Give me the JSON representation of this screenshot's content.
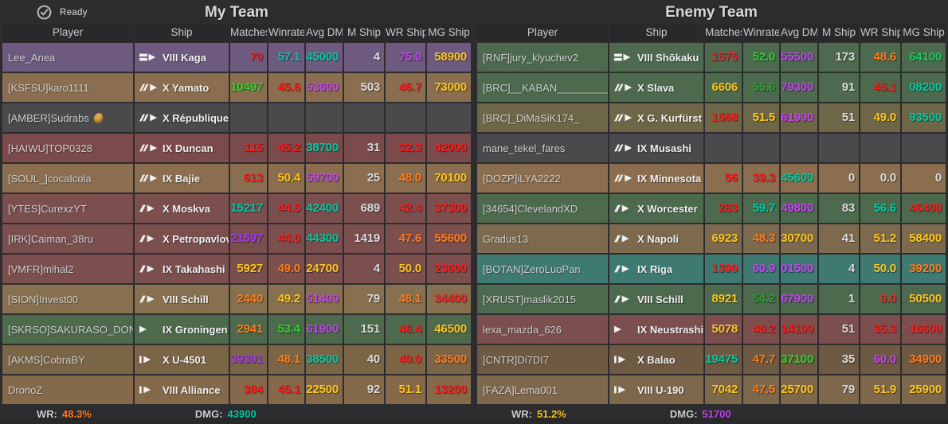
{
  "palette": {
    "red": "#fe1c1c",
    "orange": "#ff7d1f",
    "yellow": "#ffc61e",
    "green": "#33d133",
    "dgreen": "#28a32e",
    "mgreen": "#17cf60",
    "teal": "#03c9a3",
    "magenta": "#c643f5",
    "purple": "#a438f0",
    "white": "#dcdcdc"
  },
  "status": {
    "ready_label": "Ready"
  },
  "columns": [
    "Player",
    "Ship",
    "Matches",
    "Winrate",
    "Avg DMG",
    "M Ship",
    "WR Ship",
    "MG Ship"
  ],
  "teams": [
    {
      "title": "My Team",
      "summary": {
        "wr_label": "WR:",
        "wr_value": "48.3%",
        "wr_color": "orange",
        "dmg_label": "DMG:",
        "dmg_value": "43900",
        "dmg_color": "teal"
      },
      "rows": [
        {
          "player": "Lee_Anea",
          "badge": false,
          "ship": "VIII Kaga",
          "ship_class": "carrier",
          "row_bg": "#6e5a7e",
          "cells": [
            [
              "70",
              "red"
            ],
            [
              "57.1",
              "teal"
            ],
            [
              "45000",
              "teal"
            ],
            [
              "4",
              "white"
            ],
            [
              "75.0",
              "magenta"
            ],
            [
              "58900",
              "yellow"
            ]
          ]
        },
        {
          "player": "[KSFSU]karo1111",
          "badge": false,
          "ship": "X Yamato",
          "ship_class": "battleship",
          "row_bg": "#8a6e4f",
          "cells": [
            [
              "10497",
              "green"
            ],
            [
              "45.6",
              "red"
            ],
            [
              "53600",
              "magenta"
            ],
            [
              "503",
              "white"
            ],
            [
              "46.7",
              "red"
            ],
            [
              "73000",
              "yellow"
            ]
          ]
        },
        {
          "player": "[AMBER]Sudrabs",
          "badge": true,
          "ship": "X République",
          "ship_class": "battleship",
          "row_bg": "#4a4a4d",
          "cells": [
            [
              "",
              ""
            ],
            [
              "",
              ""
            ],
            [
              "",
              ""
            ],
            [
              "",
              ""
            ],
            [
              "",
              ""
            ],
            [
              "",
              ""
            ]
          ]
        },
        {
          "player": "[HAIWU]TOP0328",
          "badge": false,
          "ship": "IX Duncan",
          "ship_class": "battleship",
          "row_bg": "#7b4a4a",
          "cells": [
            [
              "115",
              "red"
            ],
            [
              "45.2",
              "red"
            ],
            [
              "38700",
              "teal"
            ],
            [
              "31",
              "white"
            ],
            [
              "32.3",
              "red"
            ],
            [
              "42000",
              "red"
            ]
          ]
        },
        {
          "player": "[SOUL_]cocaIcola",
          "badge": false,
          "ship": "IX Bajie",
          "ship_class": "battleship",
          "row_bg": "#8a6e4f",
          "cells": [
            [
              "613",
              "red"
            ],
            [
              "50.4",
              "yellow"
            ],
            [
              "59700",
              "magenta"
            ],
            [
              "25",
              "white"
            ],
            [
              "48.0",
              "orange"
            ],
            [
              "70100",
              "yellow"
            ]
          ]
        },
        {
          "player": "[YTES]CurexzYT",
          "badge": false,
          "ship": "X Moskva",
          "ship_class": "cruiser",
          "row_bg": "#7c4f4f",
          "cells": [
            [
              "15217",
              "teal"
            ],
            [
              "44.5",
              "red"
            ],
            [
              "42400",
              "teal"
            ],
            [
              "689",
              "white"
            ],
            [
              "42.4",
              "red"
            ],
            [
              "37300",
              "red"
            ]
          ]
        },
        {
          "player": "[IRK]Caiman_38ru",
          "badge": false,
          "ship": "X Petropavlovsk",
          "ship_class": "cruiser",
          "row_bg": "#7c4f4f",
          "cells": [
            [
              "21597",
              "purple"
            ],
            [
              "44.0",
              "red"
            ],
            [
              "44300",
              "teal"
            ],
            [
              "1419",
              "white"
            ],
            [
              "47.6",
              "orange"
            ],
            [
              "55600",
              "orange"
            ]
          ]
        },
        {
          "player": "[VMFR]mihal2",
          "badge": false,
          "ship": "IX Takahashi",
          "ship_class": "cruiser",
          "row_bg": "#7c4f4f",
          "cells": [
            [
              "5927",
              "yellow"
            ],
            [
              "49.0",
              "orange"
            ],
            [
              "24700",
              "yellow"
            ],
            [
              "4",
              "white"
            ],
            [
              "50.0",
              "yellow"
            ],
            [
              "23600",
              "red"
            ]
          ]
        },
        {
          "player": "[SION]Invest00",
          "badge": false,
          "ship": "VIII Schill",
          "ship_class": "cruiser",
          "row_bg": "#86704f",
          "cells": [
            [
              "2440",
              "orange"
            ],
            [
              "49.2",
              "yellow"
            ],
            [
              "51400",
              "magenta"
            ],
            [
              "79",
              "white"
            ],
            [
              "48.1",
              "orange"
            ],
            [
              "34400",
              "red"
            ]
          ]
        },
        {
          "player": "[SKRSO]SAKURASO_DONO",
          "badge": false,
          "ship": "IX Groningen",
          "ship_class": "destroyer",
          "row_bg": "#4e6a4d",
          "cells": [
            [
              "2941",
              "orange"
            ],
            [
              "53.4",
              "green"
            ],
            [
              "61900",
              "magenta"
            ],
            [
              "151",
              "white"
            ],
            [
              "46.4",
              "red"
            ],
            [
              "46500",
              "yellow"
            ]
          ]
        },
        {
          "player": "[AKMS]CobraBY",
          "badge": false,
          "ship": "X U-4501",
          "ship_class": "submarine",
          "row_bg": "#7b6547",
          "cells": [
            [
              "39391",
              "purple"
            ],
            [
              "48.1",
              "orange"
            ],
            [
              "38500",
              "teal"
            ],
            [
              "40",
              "white"
            ],
            [
              "40.0",
              "red"
            ],
            [
              "33500",
              "orange"
            ]
          ]
        },
        {
          "player": "DronoZ",
          "badge": false,
          "ship": "VIII Alliance",
          "ship_class": "submarine",
          "row_bg": "#84694b",
          "cells": [
            [
              "384",
              "red"
            ],
            [
              "45.1",
              "red"
            ],
            [
              "22500",
              "yellow"
            ],
            [
              "92",
              "white"
            ],
            [
              "51.1",
              "yellow"
            ],
            [
              "13200",
              "red"
            ]
          ]
        }
      ]
    },
    {
      "title": "Enemy Team",
      "summary": {
        "wr_label": "WR:",
        "wr_value": "51.2%",
        "wr_color": "yellow",
        "dmg_label": "DMG:",
        "dmg_value": "51700",
        "dmg_color": "magenta"
      },
      "rows": [
        {
          "player": "[RNF]jury_klyuchev2",
          "badge": false,
          "ship": "VIII Shōkaku",
          "ship_class": "carrier",
          "row_bg": "#4d6a4e",
          "cells": [
            [
              "1575",
              "red"
            ],
            [
              "52.0",
              "green"
            ],
            [
              "55500",
              "magenta"
            ],
            [
              "173",
              "white"
            ],
            [
              "48.6",
              "orange"
            ],
            [
              "64100",
              "mgreen"
            ]
          ]
        },
        {
          "player": "[BRC]__KABAN__________",
          "badge": false,
          "ship": "X Slava",
          "ship_class": "battleship",
          "row_bg": "#4d6a4e",
          "cells": [
            [
              "6606",
              "yellow"
            ],
            [
              "55.6",
              "dgreen"
            ],
            [
              "79300",
              "magenta"
            ],
            [
              "91",
              "white"
            ],
            [
              "45.1",
              "red"
            ],
            [
              "08200",
              "teal"
            ]
          ]
        },
        {
          "player": "[BRC]_DiMaSiK174_",
          "badge": false,
          "ship": "X G. Kurfürst",
          "ship_class": "battleship",
          "row_bg": "#6e6747",
          "cells": [
            [
              "1568",
              "red"
            ],
            [
              "51.5",
              "yellow"
            ],
            [
              "61900",
              "magenta"
            ],
            [
              "51",
              "white"
            ],
            [
              "49.0",
              "yellow"
            ],
            [
              "93500",
              "teal"
            ]
          ]
        },
        {
          "player": "mane_tekel_fares",
          "badge": false,
          "ship": "IX Musashi",
          "ship_class": "battleship",
          "row_bg": "#4a4a4d",
          "cells": [
            [
              "",
              ""
            ],
            [
              "",
              ""
            ],
            [
              "",
              ""
            ],
            [
              "",
              ""
            ],
            [
              "",
              ""
            ],
            [
              "",
              ""
            ]
          ]
        },
        {
          "player": "[DOZP]iLYA2222",
          "badge": false,
          "ship": "IX Minnesota",
          "ship_class": "battleship",
          "row_bg": "#8a6e4f",
          "cells": [
            [
              "56",
              "red"
            ],
            [
              "39.3",
              "red"
            ],
            [
              "45600",
              "teal"
            ],
            [
              "0",
              "white"
            ],
            [
              "0.0",
              "white"
            ],
            [
              "0",
              "white"
            ]
          ]
        },
        {
          "player": "[34654]ClevelandXD",
          "badge": false,
          "ship": "X Worcester",
          "ship_class": "cruiser",
          "row_bg": "#4d6a4e",
          "cells": [
            [
              "283",
              "red"
            ],
            [
              "59.7",
              "teal"
            ],
            [
              "49800",
              "magenta"
            ],
            [
              "83",
              "white"
            ],
            [
              "56.6",
              "teal"
            ],
            [
              "46400",
              "red"
            ]
          ]
        },
        {
          "player": "Gradus13",
          "badge": false,
          "ship": "X Napoli",
          "ship_class": "cruiser",
          "row_bg": "#7d6a4e",
          "cells": [
            [
              "6923",
              "yellow"
            ],
            [
              "48.3",
              "orange"
            ],
            [
              "30700",
              "yellow"
            ],
            [
              "41",
              "white"
            ],
            [
              "51.2",
              "yellow"
            ],
            [
              "58400",
              "yellow"
            ]
          ]
        },
        {
          "player": "[BOTAN]ZeroLuoPan",
          "badge": false,
          "ship": "IX Riga",
          "ship_class": "cruiser",
          "row_bg": "#3f7a72",
          "cells": [
            [
              "1390",
              "red"
            ],
            [
              "60.9",
              "magenta"
            ],
            [
              "01500",
              "magenta"
            ],
            [
              "4",
              "white"
            ],
            [
              "50.0",
              "yellow"
            ],
            [
              "39200",
              "orange"
            ]
          ]
        },
        {
          "player": "[XRUST]maslik2015",
          "badge": false,
          "ship": "VIII Schill",
          "ship_class": "cruiser",
          "row_bg": "#4d6a4e",
          "cells": [
            [
              "8921",
              "yellow"
            ],
            [
              "54.2",
              "dgreen"
            ],
            [
              "67900",
              "magenta"
            ],
            [
              "1",
              "white"
            ],
            [
              "0.0",
              "red"
            ],
            [
              "50500",
              "yellow"
            ]
          ]
        },
        {
          "player": "lexa_mazda_626",
          "badge": false,
          "ship": "IX Neustrashimy",
          "ship_class": "destroyer",
          "row_bg": "#7c4f4f",
          "cells": [
            [
              "5078",
              "yellow"
            ],
            [
              "46.2",
              "red"
            ],
            [
              "14100",
              "red"
            ],
            [
              "51",
              "white"
            ],
            [
              "35.3",
              "red"
            ],
            [
              "16600",
              "red"
            ]
          ]
        },
        {
          "player": "[CNTR]Di7DI7",
          "badge": false,
          "ship": "X Balao",
          "ship_class": "submarine",
          "row_bg": "#6e5a43",
          "cells": [
            [
              "19475",
              "teal"
            ],
            [
              "47.7",
              "orange"
            ],
            [
              "37100",
              "green"
            ],
            [
              "35",
              "white"
            ],
            [
              "60.0",
              "magenta"
            ],
            [
              "34900",
              "orange"
            ]
          ]
        },
        {
          "player": "[FAZA]Lema001",
          "badge": false,
          "ship": "VIII U-190",
          "ship_class": "submarine",
          "row_bg": "#7d684c",
          "cells": [
            [
              "7042",
              "yellow"
            ],
            [
              "47.5",
              "orange"
            ],
            [
              "25700",
              "yellow"
            ],
            [
              "79",
              "white"
            ],
            [
              "51.9",
              "yellow"
            ],
            [
              "25900",
              "yellow"
            ]
          ]
        }
      ]
    }
  ]
}
